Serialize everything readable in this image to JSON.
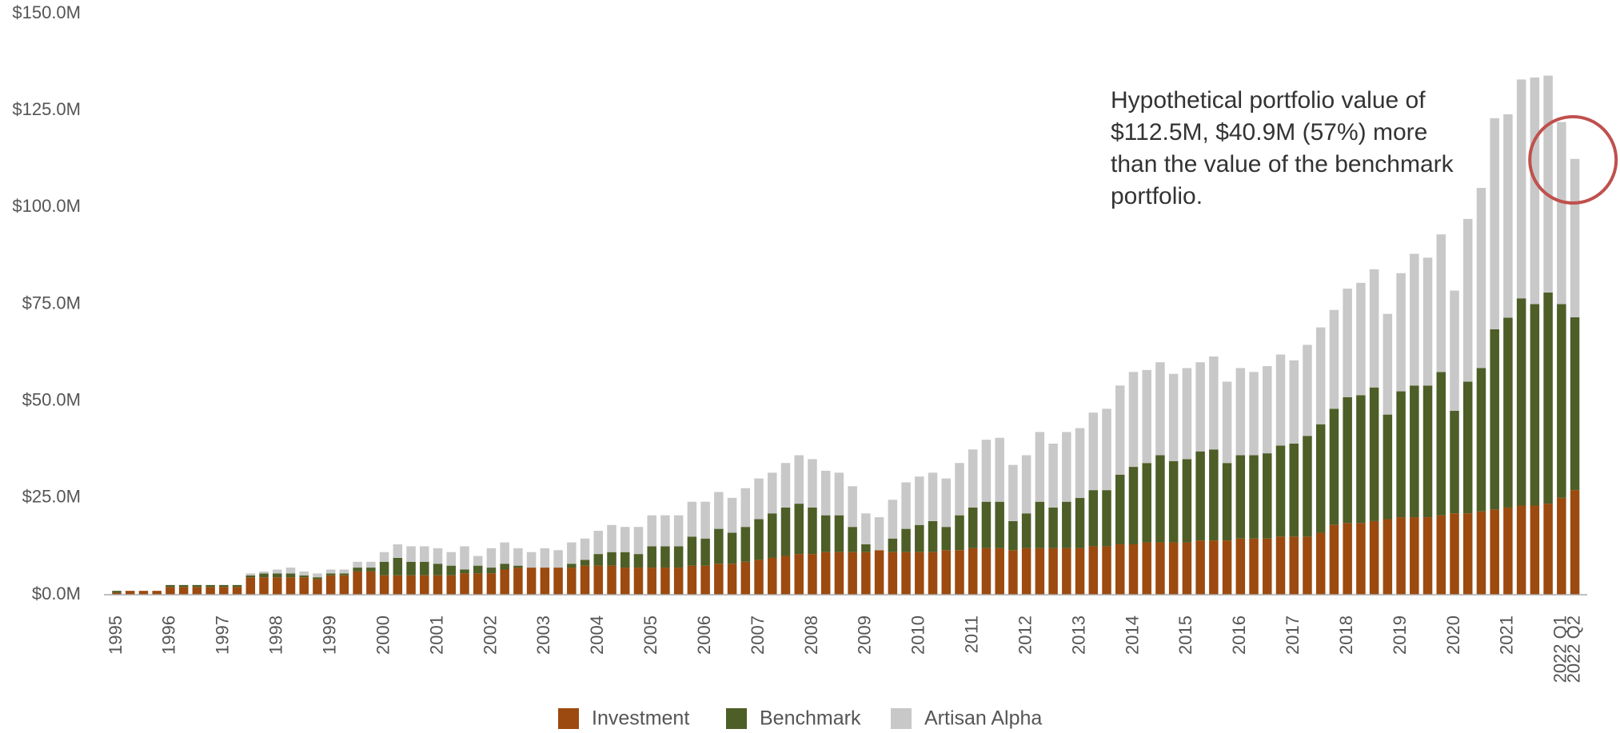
{
  "chart_data": {
    "type": "stacked_bar",
    "annotation": "Hypothetical portfolio value of $112.5M, $40.9M (57%) more than the value of the benchmark portfolio.",
    "categories": [
      "1995",
      null,
      null,
      null,
      "1996",
      null,
      null,
      null,
      "1997",
      null,
      null,
      null,
      "1998",
      null,
      null,
      null,
      "1999",
      null,
      null,
      null,
      "2000",
      null,
      null,
      null,
      "2001",
      null,
      null,
      null,
      "2002",
      null,
      null,
      null,
      "2003",
      null,
      null,
      null,
      "2004",
      null,
      null,
      null,
      "2005",
      null,
      null,
      null,
      "2006",
      null,
      null,
      null,
      "2007",
      null,
      null,
      null,
      "2008",
      null,
      null,
      null,
      "2009",
      null,
      null,
      null,
      "2010",
      null,
      null,
      null,
      "2011",
      null,
      null,
      null,
      "2012",
      null,
      null,
      null,
      "2013",
      null,
      null,
      null,
      "2014",
      null,
      null,
      null,
      "2015",
      null,
      null,
      null,
      "2016",
      null,
      null,
      null,
      "2017",
      null,
      null,
      null,
      "2018",
      null,
      null,
      null,
      "2019",
      null,
      null,
      null,
      "2020",
      null,
      null,
      null,
      "2021",
      null,
      null,
      null,
      "2022 Q1",
      "2022 Q2"
    ],
    "series": [
      {
        "name": "Investment",
        "color": "#9c4a0f",
        "values": [
          0.5,
          1,
          1,
          1,
          2,
          2,
          2,
          2,
          2,
          2,
          4.5,
          4.5,
          4.5,
          4.5,
          4.5,
          4,
          5,
          5,
          6,
          6,
          5,
          5,
          5,
          5,
          5,
          5,
          5.5,
          5.5,
          5.5,
          6.5,
          7,
          7,
          7,
          7,
          7,
          7.5,
          7.5,
          7.5,
          7,
          7,
          7,
          7,
          7,
          7.5,
          7.5,
          8,
          8,
          8.5,
          9,
          9.5,
          10,
          10.5,
          10.5,
          11,
          11,
          11,
          11,
          11.5,
          11,
          11,
          11,
          11,
          11.5,
          11.5,
          12,
          12,
          12,
          11.5,
          12,
          12,
          12,
          12,
          12,
          12.5,
          12.5,
          13,
          13,
          13.5,
          13.5,
          13.5,
          13.5,
          14,
          14,
          14,
          14.5,
          14.5,
          14.5,
          15,
          15,
          15,
          16,
          18,
          18.5,
          18.5,
          19,
          19.5,
          20,
          20,
          20,
          20.5,
          21,
          21,
          21.5,
          22,
          22.5,
          23,
          23,
          23.5,
          25,
          27
        ]
      },
      {
        "name": "Benchmark",
        "color": "#4d5e27",
        "values": [
          0.5,
          0,
          0,
          0,
          0.5,
          0.5,
          0.5,
          0.5,
          0.5,
          0.5,
          0.5,
          1,
          1,
          1,
          0.5,
          0.5,
          0.5,
          0.5,
          1,
          1,
          3.5,
          4.5,
          3.5,
          3.5,
          3,
          2.5,
          1,
          2,
          1.5,
          1.5,
          0.5,
          0,
          0,
          0,
          1,
          1.5,
          3,
          3.5,
          4,
          3.5,
          5.5,
          5.5,
          5.5,
          7.5,
          7,
          9,
          8,
          9,
          10.5,
          11.5,
          12.5,
          13,
          12,
          9.5,
          9.5,
          6.5,
          2,
          0,
          3.5,
          6,
          7,
          8,
          6,
          9,
          10.5,
          12,
          12,
          7.5,
          9,
          12,
          10.5,
          12,
          13,
          14.5,
          14.5,
          18,
          20,
          20.5,
          22.5,
          21,
          21.5,
          23,
          23.5,
          20,
          21.5,
          21.5,
          22,
          23.5,
          24,
          26,
          28,
          30,
          32.5,
          33,
          34.5,
          27,
          32.5,
          34,
          34,
          37,
          26.5,
          34,
          37,
          46.5,
          49,
          53.5,
          52,
          54.5,
          50,
          44.6
        ]
      },
      {
        "name": "Artisan Alpha",
        "color": "#c8c8c8",
        "values": [
          0,
          0,
          0,
          0,
          0,
          0,
          0,
          0,
          0,
          0,
          0.5,
          0.5,
          1,
          1.5,
          1,
          1,
          1,
          1,
          1.5,
          1.5,
          2.5,
          3.5,
          4,
          4,
          4,
          3.5,
          6,
          2.5,
          5,
          5.5,
          4.5,
          4,
          5,
          4.5,
          5.5,
          5.5,
          6,
          7,
          6.5,
          7,
          8,
          8,
          8,
          9,
          9.5,
          9.5,
          9,
          10,
          10.5,
          10.5,
          11.5,
          12.5,
          12.5,
          11.5,
          11,
          10.5,
          8,
          8.5,
          10,
          12,
          12.5,
          12.5,
          12.5,
          13.5,
          15,
          16,
          16.5,
          14.5,
          15,
          18,
          16.5,
          18,
          18,
          20,
          21,
          23,
          24.5,
          24,
          24,
          22.5,
          23.5,
          23,
          24,
          21,
          22.5,
          21.5,
          22.5,
          23.5,
          21.5,
          23.5,
          25,
          25.5,
          28,
          29,
          30.5,
          26,
          30.5,
          34,
          33,
          35.5,
          31,
          42,
          46.5,
          54.5,
          52.5,
          56.5,
          58.5,
          56,
          47,
          40.9
        ]
      }
    ],
    "ylim": [
      0,
      150
    ],
    "yticks": [
      {
        "value": 0,
        "label": "$0.0M"
      },
      {
        "value": 25,
        "label": "$25.0M"
      },
      {
        "value": 50,
        "label": "$50.0M"
      },
      {
        "value": 75,
        "label": "$75.0M"
      },
      {
        "value": 100,
        "label": "$100.0M"
      },
      {
        "value": 125,
        "label": "$125.0M"
      },
      {
        "value": 150,
        "label": "$150.0M"
      }
    ],
    "grid": false,
    "legend": "bottom"
  }
}
